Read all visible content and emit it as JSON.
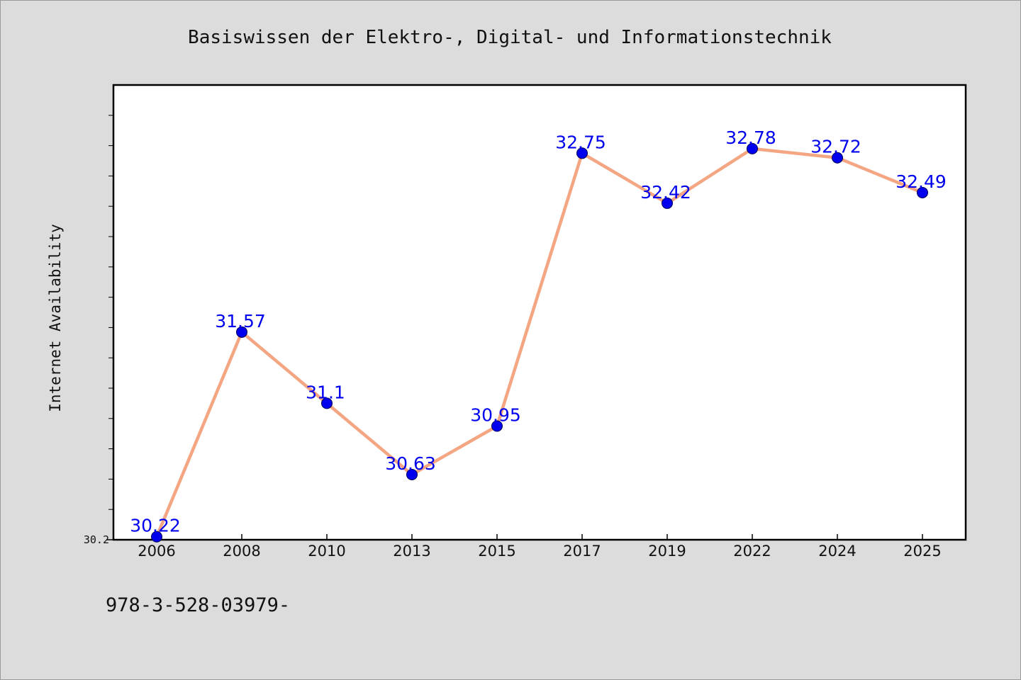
{
  "chart_data": {
    "type": "line",
    "title": "Basiswissen der Elektro-, Digital- und Informationstechnik",
    "xlabel": "",
    "ylabel": "Internet Availability",
    "categories": [
      "2006",
      "2008",
      "2010",
      "2013",
      "2015",
      "2017",
      "2019",
      "2022",
      "2024",
      "2025"
    ],
    "series": [
      {
        "values": [
          30.22,
          31.57,
          31.1,
          30.63,
          30.95,
          32.75,
          32.42,
          32.78,
          32.72,
          32.49
        ],
        "labels": [
          "30.22",
          "31.57",
          "31.1",
          "30.63",
          "30.95",
          "32.75",
          "32.42",
          "32.78",
          "32.72",
          "32.49"
        ]
      }
    ],
    "ylim": [
      30.2,
      33.2
    ],
    "yticks": [
      {
        "value": 30.2,
        "label": "30.2"
      }
    ],
    "grid": false,
    "legend": "none",
    "colors": {
      "line": "#f4a582",
      "marker": "#0000ee",
      "label": "#0000ee",
      "background": "#dcdcdc",
      "plot_background": "#ffffff"
    }
  },
  "footer": {
    "text": "978-3-528-03979-"
  }
}
